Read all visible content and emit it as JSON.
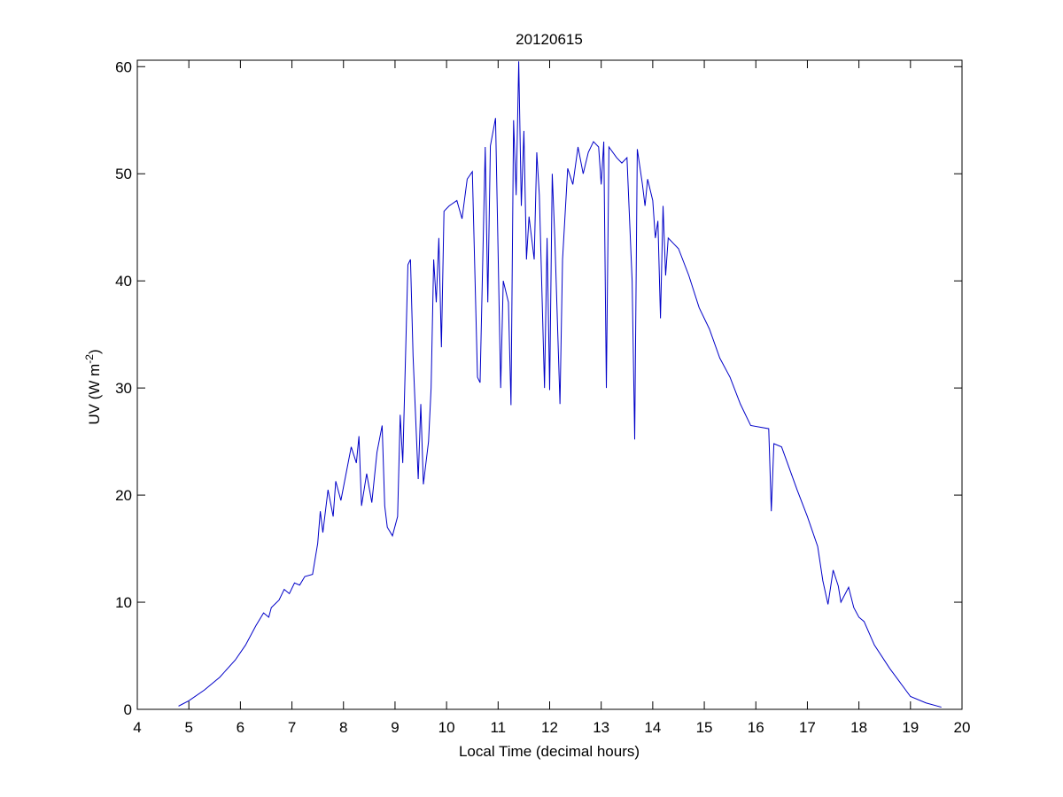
{
  "chart_data": {
    "type": "line",
    "title": "20120615",
    "xlabel": "Local Time (decimal hours)",
    "ylabel": {
      "text": "UV (W m",
      "superscript": "-2",
      "suffix": ")"
    },
    "xlim": [
      4,
      20
    ],
    "xticks": [
      4,
      5,
      6,
      7,
      8,
      9,
      10,
      11,
      12,
      13,
      14,
      15,
      16,
      17,
      18,
      19,
      20
    ],
    "ylim": [
      0,
      60.6
    ],
    "yticks": [
      0,
      10,
      20,
      30,
      40,
      50,
      60
    ],
    "series": [
      {
        "color": "#0000c8",
        "x": [
          4.8,
          5.0,
          5.3,
          5.6,
          5.9,
          6.1,
          6.3,
          6.45,
          6.55,
          6.6,
          6.75,
          6.85,
          6.95,
          7.05,
          7.15,
          7.25,
          7.4,
          7.5,
          7.55,
          7.6,
          7.7,
          7.8,
          7.85,
          7.95,
          8.05,
          8.15,
          8.25,
          8.3,
          8.35,
          8.45,
          8.55,
          8.65,
          8.75,
          8.8,
          8.85,
          8.95,
          9.05,
          9.1,
          9.15,
          9.25,
          9.3,
          9.35,
          9.45,
          9.5,
          9.55,
          9.65,
          9.7,
          9.75,
          9.8,
          9.85,
          9.9,
          9.95,
          10.05,
          10.2,
          10.3,
          10.4,
          10.5,
          10.6,
          10.65,
          10.75,
          10.8,
          10.85,
          10.95,
          11.05,
          11.1,
          11.2,
          11.25,
          11.3,
          11.35,
          11.4,
          11.45,
          11.5,
          11.55,
          11.6,
          11.7,
          11.75,
          11.8,
          11.9,
          11.95,
          12.0,
          12.05,
          12.1,
          12.2,
          12.25,
          12.35,
          12.45,
          12.55,
          12.65,
          12.75,
          12.85,
          12.95,
          13.0,
          13.05,
          13.1,
          13.15,
          13.3,
          13.4,
          13.5,
          13.6,
          13.65,
          13.7,
          13.8,
          13.85,
          13.9,
          14.0,
          14.05,
          14.1,
          14.15,
          14.2,
          14.25,
          14.3,
          14.5,
          14.7,
          14.9,
          15.1,
          15.3,
          15.5,
          15.7,
          15.9,
          16.25,
          16.3,
          16.35,
          16.5,
          16.8,
          17.0,
          17.2,
          17.3,
          17.4,
          17.5,
          17.6,
          17.65,
          17.8,
          17.9,
          18.0,
          18.1,
          18.3,
          18.6,
          19.0,
          19.3,
          19.6
        ],
        "values": [
          0.3,
          0.8,
          1.8,
          3,
          4.6,
          6,
          7.8,
          9,
          8.6,
          9.5,
          10.2,
          11.2,
          10.8,
          11.8,
          11.6,
          12.4,
          12.6,
          15.5,
          18.5,
          16.5,
          20.5,
          18,
          21.3,
          19.5,
          22,
          24.5,
          23,
          25.5,
          19,
          22,
          19.3,
          24,
          26.5,
          19,
          17,
          16.2,
          18,
          27.5,
          23,
          41.5,
          42,
          33,
          21.5,
          28.5,
          21,
          25,
          30,
          42,
          38,
          44,
          33.8,
          46.5,
          47,
          47.5,
          45.8,
          49.5,
          50.2,
          31,
          30.5,
          52.5,
          38,
          52.6,
          55.2,
          30,
          40,
          38,
          28.4,
          55,
          48,
          60.5,
          47,
          54,
          42,
          46,
          42,
          52,
          48,
          30,
          44,
          29.8,
          50,
          44,
          28.5,
          42,
          50.5,
          49,
          52.5,
          50,
          52,
          53,
          52.5,
          49,
          53,
          30,
          52.5,
          51.5,
          51,
          51.5,
          40,
          25.2,
          52.3,
          49,
          47,
          49.5,
          47.5,
          44,
          45.6,
          36.5,
          47,
          40.5,
          44,
          43,
          40.5,
          37.5,
          35.5,
          32.8,
          31,
          28.5,
          26.5,
          26.2,
          18.5,
          24.8,
          24.5,
          20.5,
          18,
          15.2,
          12,
          9.8,
          13,
          11.5,
          10,
          11.4,
          9.5,
          8.6,
          8.2,
          6,
          3.8,
          1.2,
          0.6,
          0.2
        ]
      }
    ]
  }
}
